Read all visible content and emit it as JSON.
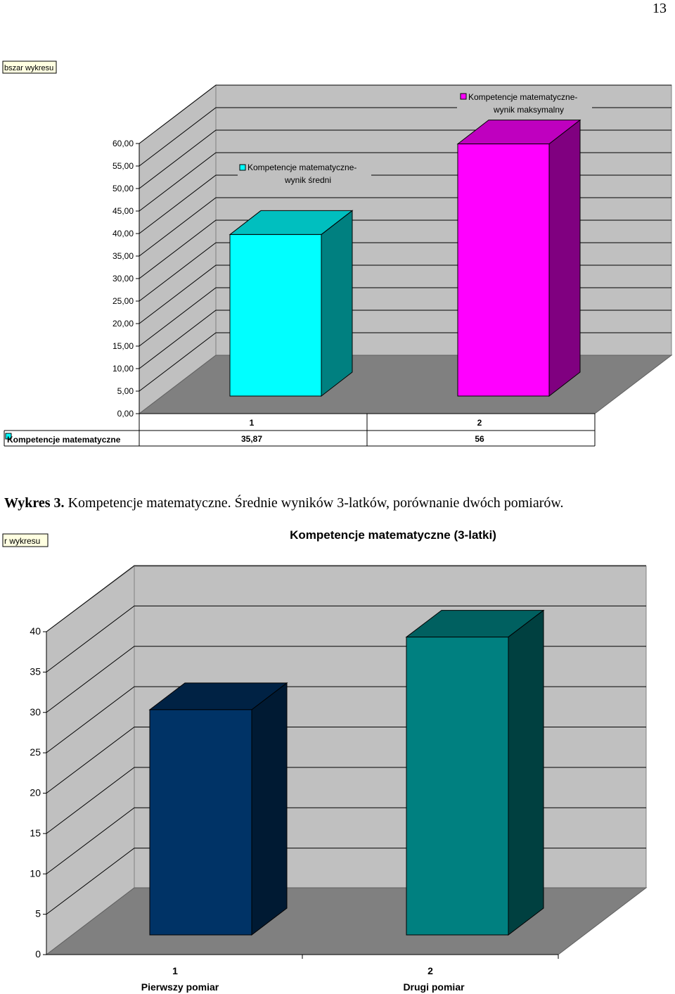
{
  "page": {
    "number": "13"
  },
  "tags": {
    "top": "bszar wykresu",
    "bottom": "r wykresu"
  },
  "caption": {
    "label": "Wykres 3.",
    "text": "Kompetencje matematyczne. Średnie wyników 3-latków, porównanie dwóch pomiarów."
  },
  "colors": {
    "cyan": "#00ffff",
    "cyan_side": "#008080",
    "cyan_top": "#00bfbf",
    "magenta": "#ff00ff",
    "magenta_side": "#800080",
    "magenta_top": "#bf00bf",
    "navy": "#003366",
    "navy_side": "#001a33",
    "navy_top": "#002244",
    "teal": "#008080",
    "teal_side": "#004040",
    "teal_top": "#006060",
    "wall": "#c0c0c0",
    "floor": "#808080"
  },
  "chart_data": [
    {
      "type": "bar",
      "categories": [
        "1",
        "2"
      ],
      "ylim": [
        0,
        60
      ],
      "yticks": [
        "0,00",
        "5,00",
        "10,00",
        "15,00",
        "20,00",
        "25,00",
        "30,00",
        "35,00",
        "40,00",
        "45,00",
        "50,00",
        "55,00",
        "60,00"
      ],
      "series": [
        {
          "name": "Kompetencje matematyczne",
          "values": [
            35.87,
            56
          ]
        }
      ],
      "labels": [
        {
          "line1": "Kompetencje matematyczne-",
          "line2": "wynik średni"
        },
        {
          "line1": "Kompetencje matematyczne-",
          "line2": "wynik maksymalny"
        }
      ],
      "table": {
        "row_label": "Kompetencje matematyczne",
        "cells": [
          "35,87",
          "56"
        ]
      },
      "grid": true
    },
    {
      "type": "bar",
      "title": "Kompetencje matematyczne (3-latki)",
      "categories": [
        "1",
        "2"
      ],
      "category_labels": [
        "Pierwszy pomiar",
        "Drugi pomiar"
      ],
      "ylim": [
        0,
        40
      ],
      "yticks": [
        "0",
        "5",
        "10",
        "15",
        "20",
        "25",
        "30",
        "35",
        "40"
      ],
      "values": [
        27.9,
        36.9
      ],
      "grid": true
    }
  ]
}
